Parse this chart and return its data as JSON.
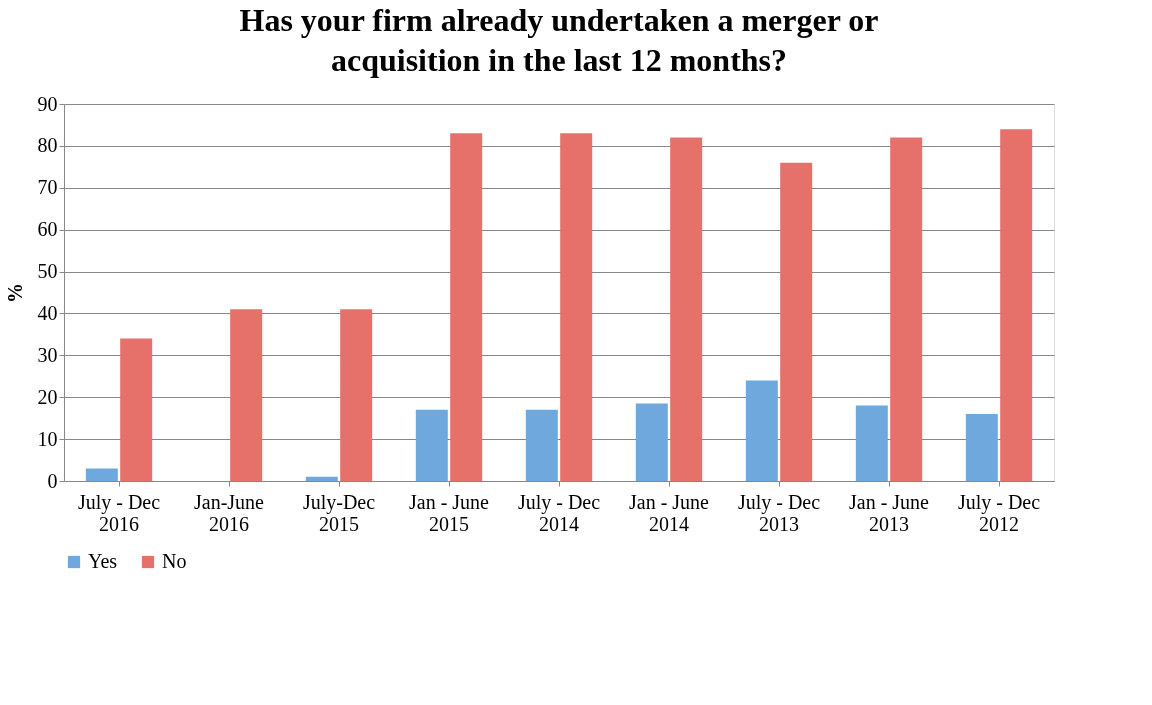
{
  "chart_data": {
    "type": "bar",
    "title": "Has your firm already undertaken a merger or acquisition in the last 12 months?",
    "ylabel": "%",
    "categories": [
      "July - Dec 2016",
      "Jan-June 2016",
      "July-Dec 2015",
      "Jan - June 2015",
      "July - Dec 2014",
      "Jan - June 2014",
      "July - Dec 2013",
      "Jan - June 2013",
      "July - Dec 2012"
    ],
    "series": [
      {
        "name": "Yes",
        "color": "#6fa8dc",
        "values": [
          3,
          0,
          1,
          17,
          17,
          18.5,
          24,
          18,
          16
        ]
      },
      {
        "name": "No",
        "color": "#e6706a",
        "values": [
          34,
          41,
          41,
          83,
          83,
          82,
          76,
          82,
          84
        ]
      }
    ],
    "ylim": [
      0,
      90
    ],
    "yticks": [
      0,
      10,
      20,
      30,
      40,
      50,
      60,
      70,
      80,
      90
    ],
    "grid": "y",
    "legend": "bottom"
  }
}
